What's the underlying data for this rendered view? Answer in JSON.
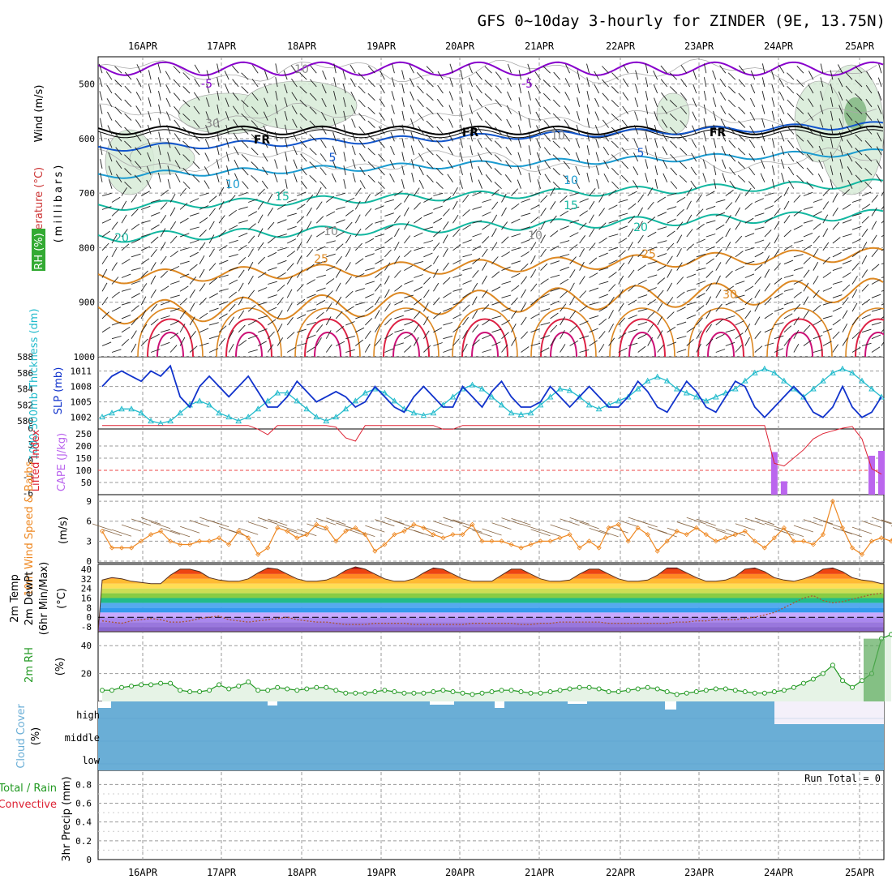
{
  "title": "GFS 0~10day 3-hourly for ZINDER (9E, 13.75N)",
  "date_labels": [
    "16APR",
    "17APR",
    "18APR",
    "19APR",
    "20APR",
    "21APR",
    "22APR",
    "23APR",
    "24APR",
    "25APR"
  ],
  "colors": {
    "grid": "#9a9a9a",
    "temp_purple": "#8800cc",
    "temp_blue": "#1155cc",
    "temp_cyan": "#1a9bd0",
    "temp_teal": "#12b7a0",
    "temp_orange": "#dd8822",
    "temp_red": "#dd2244",
    "slp": "#1133cc",
    "thickness": "#22bbcc",
    "cape": "#bb66ee",
    "lifted": "#dd2233",
    "wind10m": "#ee8822",
    "rh": "#229922",
    "cloud": "#6aaed6",
    "barb": "#222222",
    "rh_fill": "#5aaa5a"
  },
  "panels": {
    "upper": {
      "ylabel_wind": "Wind (m/s)",
      "ylabel_temp": "Temperature (°C)",
      "ylabel_p": "(millibars)",
      "rh_label": "RH (%)",
      "freezing_label": "FR",
      "isotherm_labels": [
        "-5",
        "-5",
        "5",
        "5",
        "10",
        "10",
        "15",
        "15",
        "20",
        "20",
        "25",
        "25",
        "30",
        "10",
        "10",
        "10",
        "10",
        "30"
      ]
    },
    "slp": {
      "ylabel_thick": "1000-500mb Thickness (dm)",
      "ylabel_slp": "SLP (mb)"
    },
    "cape": {
      "ylabel_li": "Lifted Index",
      "ylabel_cape": "CAPE (J/kg)"
    },
    "wind10": {
      "ylabel": "10m Wind Speed & Barbs",
      "unit": "(m/s)"
    },
    "temp2m": {
      "ylabel1": "2m Temp",
      "ylabel2": "2m DewPt",
      "ylabel3": "(6hr Min/Max)",
      "unit": "(°C)"
    },
    "rh2m": {
      "ylabel": "2m RH",
      "unit": "(%)"
    },
    "cloud": {
      "ylabel": "Cloud Cover",
      "unit": "(%)",
      "levels": [
        "high",
        "middle",
        "low"
      ]
    },
    "precip": {
      "ylabel1": "Total / Rain",
      "ylabel2": "Convective",
      "ylabel3": "3hr Precip (mm)",
      "run_total": "Run Total = 0"
    }
  },
  "chart_data": [
    {
      "type": "heatmap",
      "title": "Temperature / Wind / RH cross-section",
      "ylabel": "millibars",
      "y_ticks": [
        500,
        600,
        700,
        800,
        900,
        1000
      ],
      "ylim": [
        1000,
        450
      ],
      "isotherms": [
        -5,
        0,
        5,
        10,
        15,
        20,
        25,
        30
      ]
    },
    {
      "type": "line",
      "series": [
        {
          "name": "SLP (mb)",
          "yticks": [
            1002,
            1005,
            1008,
            1011
          ],
          "values": [
            1008,
            1010,
            1011,
            1010,
            1009,
            1011,
            1010,
            1012,
            1006,
            1004,
            1008,
            1010,
            1008,
            1006,
            1008,
            1010,
            1007,
            1004,
            1004,
            1006,
            1009,
            1007,
            1005,
            1006,
            1007,
            1006,
            1004,
            1005,
            1008,
            1006,
            1004,
            1003,
            1006,
            1008,
            1006,
            1004,
            1004,
            1008,
            1006,
            1004,
            1007,
            1009,
            1006,
            1004,
            1004,
            1005,
            1008,
            1006,
            1004,
            1006,
            1008,
            1006,
            1004,
            1004,
            1006,
            1009,
            1007,
            1004,
            1003,
            1006,
            1009,
            1007,
            1004,
            1003,
            1006,
            1009,
            1008,
            1004,
            1002,
            1004,
            1006,
            1008,
            1006,
            1003,
            1002,
            1004,
            1008,
            1004,
            1002,
            1003,
            1006
          ]
        },
        {
          "name": "1000-500mb Thickness (dm)",
          "yticks": [
            580,
            582,
            584,
            586,
            588
          ],
          "values": [
            580.5,
            581,
            581.5,
            581.5,
            581,
            580,
            579.7,
            580,
            581,
            582,
            582.5,
            582,
            581,
            580.5,
            580,
            580.5,
            581.5,
            582.5,
            583.5,
            583.5,
            582.5,
            581.5,
            580.5,
            580,
            580.5,
            581.5,
            582.5,
            583.5,
            584,
            583.5,
            582.5,
            581.5,
            581,
            580.7,
            581,
            582,
            583,
            584,
            584.5,
            584,
            583,
            582,
            581,
            580.8,
            581,
            582,
            583,
            584,
            583.8,
            583,
            582,
            581.5,
            582,
            582.5,
            583,
            584,
            585,
            585.5,
            585,
            584,
            583.5,
            583,
            582.5,
            583,
            583.5,
            584,
            585,
            586,
            586.5,
            586,
            585,
            584,
            583,
            584,
            585,
            586,
            586.5,
            586,
            585,
            584,
            583
          ]
        }
      ]
    },
    {
      "type": "bar",
      "title": "CAPE / Lifted Index",
      "ylabel": "CAPE (J/kg)",
      "yticks_cape": [
        50,
        100,
        150,
        200,
        250
      ],
      "yticks_li": [
        6,
        3,
        0,
        -3,
        -6
      ],
      "bars": [
        {
          "x": 69,
          "value": 175
        },
        {
          "x": 70,
          "value": 55
        },
        {
          "x": 79,
          "value": 160
        },
        {
          "x": 80,
          "value": 180
        }
      ],
      "lifted_index": [
        6.5,
        6.5,
        6.5,
        6.5,
        6.5,
        6.5,
        6.5,
        6.5,
        6.5,
        6.5,
        6.5,
        6.5,
        6.5,
        6.5,
        6.5,
        6.5,
        5.8,
        4.8,
        6.5,
        6.5,
        6.5,
        6.5,
        6.5,
        6.5,
        6.2,
        4.2,
        3.6,
        6.5,
        6.5,
        6.5,
        6.5,
        6.5,
        6.5,
        6.5,
        6.5,
        5.8,
        5.8,
        6.5,
        6.5,
        6.5,
        6.5,
        6.5,
        6.5,
        6.5,
        6.5,
        6.5,
        6.5,
        6.5,
        6.5,
        6.5,
        6.5,
        6.5,
        6.5,
        6.5,
        6.5,
        6.5,
        6.5,
        6.5,
        6.5,
        6.5,
        6.5,
        6.5,
        6.5,
        6.5,
        6.5,
        6.5,
        6.5,
        6.5,
        6.5,
        -0.5,
        -1,
        0.5,
        2,
        4,
        5,
        5.5,
        6,
        6.3,
        4,
        -1.5,
        -2.5
      ]
    },
    {
      "type": "line",
      "title": "10m Wind Speed",
      "ylabel": "(m/s)",
      "yticks": [
        0,
        3,
        6,
        9
      ],
      "values": [
        4.5,
        2,
        2,
        2,
        3,
        4,
        4.5,
        3,
        2.5,
        2.5,
        3,
        3,
        3.5,
        2.5,
        4.5,
        3.5,
        1,
        2,
        5,
        4.5,
        3.5,
        4,
        5.5,
        5,
        3,
        4.5,
        5,
        4,
        1.5,
        2.5,
        4,
        4.5,
        5.5,
        5,
        4,
        3.5,
        4,
        4,
        5.5,
        3,
        3,
        3,
        2.5,
        2,
        2.5,
        3,
        3,
        3.5,
        4,
        2,
        3,
        2,
        5,
        5.5,
        3,
        5,
        4,
        1.5,
        3,
        4.5,
        4,
        5,
        4,
        3,
        3.5,
        4,
        4.5,
        3,
        2,
        3.5,
        5,
        3,
        3,
        2.5,
        4,
        9,
        5,
        2,
        1,
        3,
        3.5,
        3,
        7
      ]
    },
    {
      "type": "area",
      "title": "2m Temp / 2m DewPt",
      "ylabel": "(°C)",
      "yticks": [
        -8,
        0,
        8,
        16,
        24,
        32,
        40
      ],
      "temp": [
        31,
        33,
        32,
        30,
        29,
        28,
        28,
        35,
        40,
        40,
        38,
        33,
        31,
        30,
        30,
        32,
        37,
        41,
        40,
        36,
        32,
        30,
        30,
        31,
        34,
        39,
        42,
        40,
        36,
        32,
        30,
        30,
        32,
        37,
        41,
        40,
        36,
        32,
        30,
        30,
        30,
        35,
        40,
        40,
        36,
        32,
        30,
        30,
        31,
        36,
        40,
        40,
        36,
        32,
        30,
        30,
        31,
        35,
        41,
        41,
        37,
        33,
        30,
        30,
        31,
        34,
        40,
        41,
        38,
        33,
        31,
        30,
        32,
        35,
        40,
        41,
        38,
        33,
        31,
        30,
        28
      ],
      "dewpoint": [
        -3,
        -4,
        -5,
        -3,
        -2,
        -1,
        -2,
        -4,
        -4,
        -3,
        -1,
        0,
        1,
        -2,
        -3,
        -4,
        -3,
        -2,
        -1,
        0,
        -2,
        -3,
        -4,
        -4,
        -5,
        -6,
        -6,
        -6,
        -5,
        -5,
        -5,
        -5,
        -6,
        -6,
        -6,
        -6,
        -6,
        -6,
        -5,
        -5,
        -5,
        -5,
        -5,
        -6,
        -6,
        -5,
        -5,
        -4,
        -4,
        -4,
        -4,
        -4,
        -5,
        -5,
        -5,
        -5,
        -5,
        -5,
        -5,
        -4,
        -4,
        -3,
        -3,
        -2,
        -2,
        -2,
        -1,
        0,
        2,
        4,
        8,
        12,
        16,
        18,
        14,
        12,
        13,
        15,
        17,
        19,
        20
      ]
    },
    {
      "type": "area",
      "title": "2m RH",
      "ylabel": "(%)",
      "yticks": [
        20,
        40
      ],
      "values": [
        8,
        8,
        10,
        11,
        12,
        12,
        13,
        13,
        8,
        7,
        7,
        8,
        12,
        9,
        11,
        14,
        8,
        8,
        10,
        9,
        8,
        9,
        10,
        10,
        8,
        6,
        6,
        6,
        7,
        8,
        7,
        6,
        6,
        6,
        7,
        8,
        7,
        6,
        5,
        6,
        7,
        8,
        8,
        7,
        6,
        6,
        7,
        8,
        9,
        10,
        10,
        9,
        7,
        7,
        8,
        9,
        10,
        9,
        7,
        5,
        6,
        7,
        8,
        9,
        9,
        8,
        7,
        6,
        6,
        7,
        8,
        10,
        13,
        16,
        20,
        26,
        15,
        10,
        15,
        20,
        45,
        48
      ]
    },
    {
      "type": "heatmap",
      "title": "Cloud Cover",
      "ylabel": "(%)",
      "y_categories": [
        "high",
        "middle",
        "low"
      ]
    },
    {
      "type": "bar",
      "title": "3hr Precip",
      "ylabel": "(mm)",
      "yticks": [
        0,
        0.2,
        0.4,
        0.6,
        0.8
      ],
      "values": [
        0,
        0,
        0,
        0,
        0,
        0,
        0,
        0,
        0,
        0
      ]
    }
  ]
}
